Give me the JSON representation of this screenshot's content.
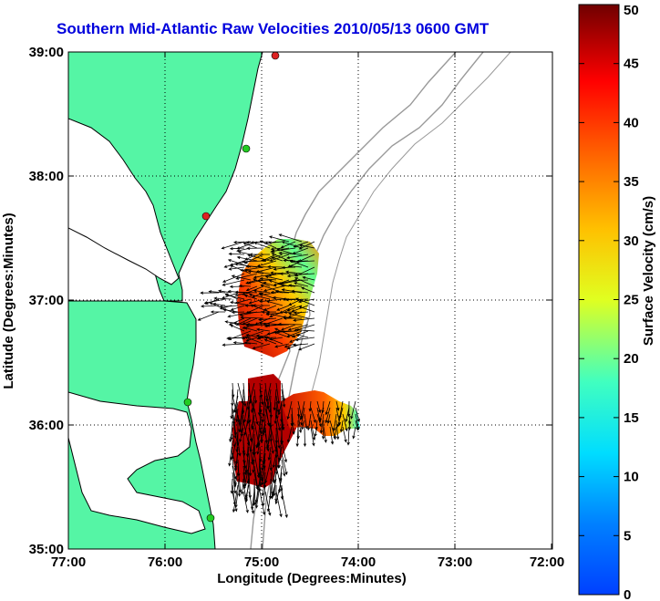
{
  "title": "Southern Mid-Atlantic Raw Velocities 2010/05/13 0600 GMT",
  "xlabel": "Longitude (Degrees:Minutes)",
  "ylabel": "Latitude (Degrees:Minutes)",
  "colorbar_label": "Surface Velocity (cm/s)",
  "x_ticks": [
    "77:00",
    "76:00",
    "75:00",
    "74:00",
    "73:00",
    "72:00"
  ],
  "y_ticks": [
    "39:00",
    "38:00",
    "37:00",
    "36:00",
    "35:00"
  ],
  "colorbar_ticks": [
    "0",
    "5",
    "10",
    "15",
    "20",
    "25",
    "30",
    "35",
    "40",
    "45",
    "50"
  ],
  "colors": {
    "land": "#55f5a5",
    "coastline": "#000000",
    "bathymetry": "#999999",
    "grid": "#000000",
    "title": "#0000dd",
    "station_green": "#22cc22",
    "station_red": "#dd2222"
  },
  "map_extent": {
    "lon_range": [
      -77,
      -72
    ],
    "lat_range": [
      35,
      39
    ]
  },
  "colorbar_range": [
    0,
    50
  ],
  "colormap": "jet",
  "grid": "dotted",
  "stations": [
    {
      "lat": 38.95,
      "lon": -74.85,
      "color": "red"
    },
    {
      "lat": 38.22,
      "lon": -75.15,
      "color": "green"
    },
    {
      "lat": 37.7,
      "lon": -75.5,
      "color": "red"
    },
    {
      "lat": 36.18,
      "lon": -75.7,
      "color": "green"
    },
    {
      "lat": 35.25,
      "lon": -75.5,
      "color": "green"
    }
  ],
  "velocity_patches": [
    {
      "name": "north-patch",
      "lat_range": [
        36.85,
        37.45
      ],
      "lon_range": [
        -75.2,
        -74.55
      ],
      "speed_range_cm_s": [
        15,
        50
      ]
    },
    {
      "name": "south-patch",
      "lat_range": [
        35.55,
        36.55
      ],
      "lon_range": [
        -75.3,
        -74.95
      ],
      "speed_range_cm_s": [
        35,
        50
      ]
    },
    {
      "name": "east-tongue",
      "lat_range": [
        35.95,
        36.2
      ],
      "lon_range": [
        -74.95,
        -74.0
      ],
      "speed_range_cm_s": [
        10,
        50
      ]
    }
  ]
}
